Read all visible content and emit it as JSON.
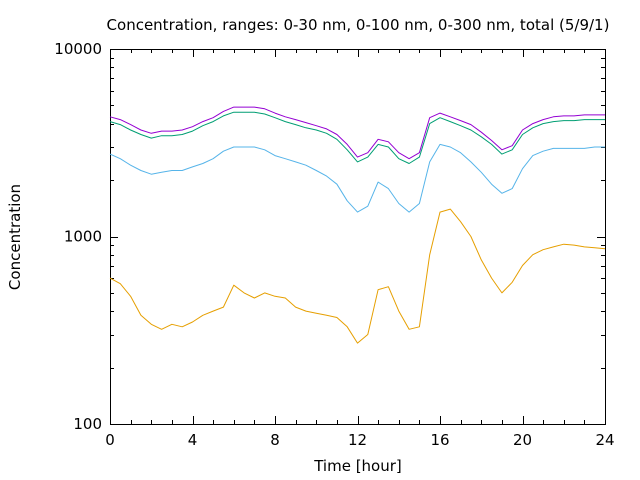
{
  "chart_data": {
    "type": "line",
    "title": "Concentration, ranges: 0-30 nm, 0-100 nm, 0-300 nm, total (5/9/1)",
    "xlabel": "Time [hour]",
    "ylabel": "Concentration",
    "xlim": [
      0,
      24
    ],
    "ylim": [
      100,
      10000
    ],
    "yscale": "log",
    "legend": "none",
    "grid": false,
    "xticks": [
      0,
      4,
      8,
      12,
      16,
      20,
      24
    ],
    "xtick_labels": [
      "0",
      "4",
      "8",
      "12",
      "16",
      "20",
      "24"
    ],
    "yticks": [
      100,
      1000,
      10000
    ],
    "ytick_labels": [
      "100",
      "1000",
      "10000"
    ],
    "x": [
      0,
      0.5,
      1,
      1.5,
      2,
      2.5,
      3,
      3.5,
      4,
      4.5,
      5,
      5.5,
      6,
      6.5,
      7,
      7.5,
      8,
      8.5,
      9,
      9.5,
      10,
      10.5,
      11,
      11.5,
      12,
      12.5,
      13,
      13.5,
      14,
      14.5,
      15,
      15.5,
      16,
      16.5,
      17,
      17.5,
      18,
      18.5,
      19,
      19.5,
      20,
      20.5,
      21,
      21.5,
      22,
      22.5,
      23,
      23.5,
      24
    ],
    "series": [
      {
        "color": "#e69f00",
        "values": [
          600,
          560,
          480,
          380,
          340,
          320,
          340,
          330,
          350,
          380,
          400,
          420,
          550,
          500,
          470,
          500,
          480,
          470,
          420,
          400,
          390,
          380,
          370,
          330,
          270,
          300,
          520,
          540,
          400,
          320,
          330,
          800,
          1350,
          1400,
          1200,
          1000,
          750,
          600,
          500,
          570,
          700,
          800,
          850,
          880,
          910,
          900,
          880,
          870,
          860
        ]
      },
      {
        "color": "#56b4e9",
        "values": [
          2750,
          2600,
          2400,
          2250,
          2150,
          2200,
          2250,
          2250,
          2350,
          2450,
          2600,
          2850,
          3000,
          3000,
          3000,
          2900,
          2700,
          2600,
          2500,
          2400,
          2250,
          2100,
          1900,
          1550,
          1350,
          1450,
          1950,
          1800,
          1500,
          1350,
          1500,
          2500,
          3100,
          3000,
          2800,
          2500,
          2200,
          1900,
          1700,
          1800,
          2300,
          2700,
          2850,
          2950,
          2950,
          2950,
          2950,
          3000,
          3000
        ]
      },
      {
        "color": "#009e73",
        "values": [
          4100,
          3950,
          3700,
          3500,
          3350,
          3450,
          3450,
          3500,
          3650,
          3900,
          4100,
          4400,
          4600,
          4600,
          4600,
          4500,
          4300,
          4100,
          3950,
          3800,
          3700,
          3550,
          3300,
          2900,
          2500,
          2650,
          3100,
          3000,
          2600,
          2450,
          2650,
          4000,
          4300,
          4100,
          3900,
          3700,
          3400,
          3100,
          2750,
          2900,
          3500,
          3800,
          4000,
          4100,
          4150,
          4150,
          4200,
          4200,
          4200
        ]
      },
      {
        "color": "#9400d3",
        "values": [
          4350,
          4200,
          3950,
          3700,
          3550,
          3650,
          3650,
          3700,
          3850,
          4100,
          4300,
          4650,
          4900,
          4900,
          4900,
          4800,
          4550,
          4350,
          4200,
          4050,
          3900,
          3750,
          3500,
          3100,
          2650,
          2800,
          3300,
          3200,
          2800,
          2600,
          2800,
          4300,
          4550,
          4350,
          4150,
          3950,
          3600,
          3250,
          2900,
          3050,
          3700,
          4000,
          4200,
          4350,
          4400,
          4400,
          4450,
          4450,
          4450
        ]
      }
    ]
  }
}
